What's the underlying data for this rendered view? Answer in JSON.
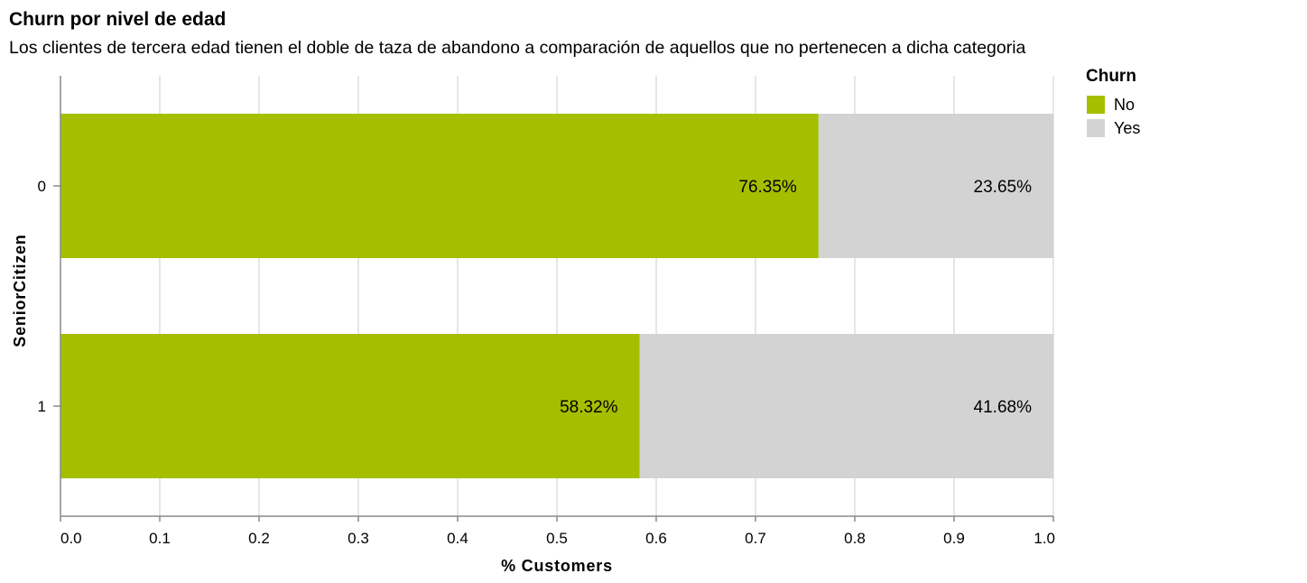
{
  "chart_data": {
    "type": "bar",
    "orientation": "horizontal",
    "stacked": true,
    "title": "Churn por nivel de edad",
    "subtitle": "Los clientes de tercera edad tienen el doble de taza de abandono a comparación de aquellos que no pertenecen a dicha categoria",
    "xlabel": "% Customers",
    "ylabel": "SeniorCitizen",
    "categories": [
      "0",
      "1"
    ],
    "xlim": [
      0,
      1
    ],
    "xticks": [
      "0.0",
      "0.1",
      "0.2",
      "0.3",
      "0.4",
      "0.5",
      "0.6",
      "0.7",
      "0.8",
      "0.9",
      "1.0"
    ],
    "grid": true,
    "legend": {
      "title": "Churn",
      "placement": "right"
    },
    "series": [
      {
        "name": "No",
        "color": "#a6be00",
        "values": [
          0.7635,
          0.5832
        ],
        "labels": [
          "76.35%",
          "58.32%"
        ]
      },
      {
        "name": "Yes",
        "color": "#d3d3d3",
        "values": [
          0.2365,
          0.4168
        ],
        "labels": [
          "23.65%",
          "41.68%"
        ]
      }
    ]
  }
}
